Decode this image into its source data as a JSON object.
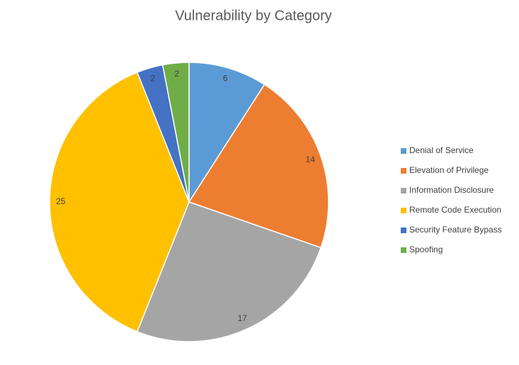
{
  "chart_data": {
    "type": "pie",
    "title": "Vulnerability by Category",
    "categories": [
      "Denial of Service",
      "Elevation of Privilege",
      "Information Disclosure",
      "Remote Code Execution",
      "Security Feature Bypass",
      "Spoofing"
    ],
    "values": [
      6,
      14,
      17,
      25,
      2,
      2
    ],
    "colors": [
      "#5b9bd5",
      "#ed7d31",
      "#a5a5a5",
      "#ffc000",
      "#4472c4",
      "#70ad47"
    ],
    "legend": "right",
    "data_labels": true
  }
}
